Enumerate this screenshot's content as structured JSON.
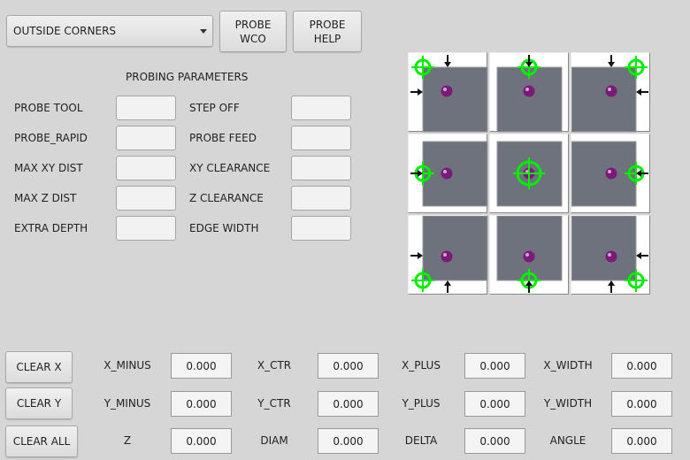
{
  "toolbar": {
    "mode_select": "OUTSIDE CORNERS",
    "probe_wco": "PROBE\nWCO",
    "probe_help": "PROBE\nHELP"
  },
  "params": {
    "title": "PROBING PARAMETERS",
    "left": [
      {
        "label": "PROBE TOOL",
        "value": ""
      },
      {
        "label": "PROBE_RAPID",
        "value": ""
      },
      {
        "label": "MAX XY DIST",
        "value": ""
      },
      {
        "label": "MAX Z DIST",
        "value": ""
      },
      {
        "label": "EXTRA DEPTH",
        "value": ""
      }
    ],
    "right": [
      {
        "label": "STEP OFF",
        "value": ""
      },
      {
        "label": "PROBE FEED",
        "value": ""
      },
      {
        "label": "XY CLEARANCE",
        "value": ""
      },
      {
        "label": "Z CLEARANCE",
        "value": ""
      },
      {
        "label": "EDGE WIDTH",
        "value": ""
      }
    ]
  },
  "probe_grid": {
    "positions": [
      "top-left",
      "top",
      "top-right",
      "left",
      "center",
      "right",
      "bottom-left",
      "bottom",
      "bottom-right"
    ],
    "target_color": "#00ee00",
    "stock_color": "#6e727c",
    "probe_color": "#7a1a7a"
  },
  "results": {
    "buttons": [
      "CLEAR X",
      "CLEAR Y",
      "CLEAR ALL"
    ],
    "rows": [
      [
        {
          "label": "X_MINUS",
          "value": "0.000"
        },
        {
          "label": "X_CTR",
          "value": "0.000"
        },
        {
          "label": "X_PLUS",
          "value": "0.000"
        },
        {
          "label": "X_WIDTH",
          "value": "0.000"
        }
      ],
      [
        {
          "label": "Y_MINUS",
          "value": "0.000"
        },
        {
          "label": "Y_CTR",
          "value": "0.000"
        },
        {
          "label": "Y_PLUS",
          "value": "0.000"
        },
        {
          "label": "Y_WIDTH",
          "value": "0.000"
        }
      ],
      [
        {
          "label": "Z",
          "value": "0.000"
        },
        {
          "label": "DIAM",
          "value": "0.000"
        },
        {
          "label": "DELTA",
          "value": "0.000"
        },
        {
          "label": "ANGLE",
          "value": "0.000"
        }
      ]
    ]
  }
}
